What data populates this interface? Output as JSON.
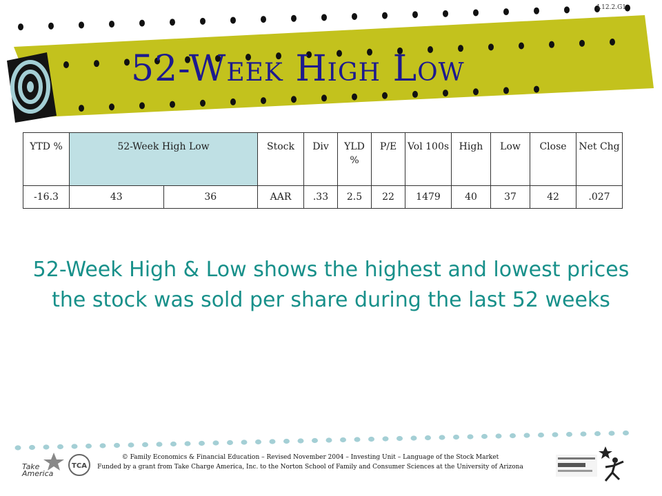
{
  "slide": {
    "code": "I.12.2.G1",
    "title": "52-Week High Low",
    "description": "52-Week High & Low shows the highest and lowest prices the stock was sold per share during the last 52 weeks"
  },
  "table": {
    "headers": [
      "YTD %",
      "52-Week High Low",
      "Stock",
      "Div",
      "YLD %",
      "P/E",
      "Vol 100s",
      "High",
      "Low",
      "Close",
      "Net Chg"
    ],
    "row": [
      "-16.3",
      "43",
      "36",
      "AAR",
      ".33",
      "2.5",
      "22",
      "1479",
      "40",
      "37",
      "42",
      ".027"
    ]
  },
  "footer": {
    "line1": "© Family Economics & Financial Education – Revised November 2004 – Investing Unit – Language of the Stock Market",
    "line2": "Funded by a grant from Take Charge America, Inc. to the Norton School of Family and Consumer Sciences at the University of Arizona"
  },
  "colors": {
    "banner": "#c3c21d",
    "title": "#1d1a8e",
    "description": "#18908a",
    "highlight": "#bfe0e4",
    "target_ring": "#a4cfd5"
  },
  "icons": [
    "target-icon",
    "take-charge-america-logo",
    "tca-logo",
    "university-of-arizona-logo",
    "star-figure-logo"
  ]
}
